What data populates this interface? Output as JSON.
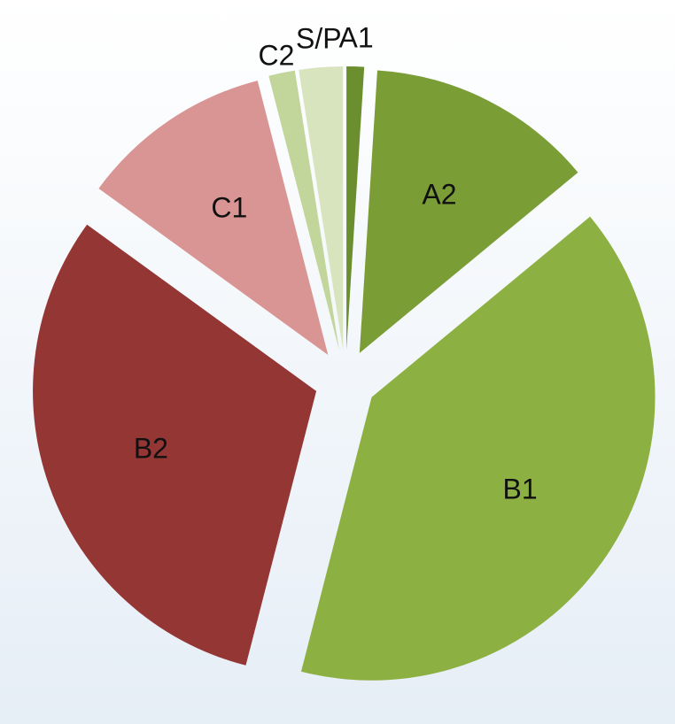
{
  "chart_data": {
    "type": "pie",
    "categories": [
      "A1",
      "A2",
      "B1",
      "B2",
      "C1",
      "C2",
      "S/P"
    ],
    "values": [
      1,
      13,
      40,
      31,
      11,
      1.5,
      2.5
    ],
    "colors": [
      "#6b8e2f",
      "#7a9d36",
      "#8cb041",
      "#943634",
      "#d99594",
      "#c2d69b",
      "#d7e4bd"
    ]
  }
}
